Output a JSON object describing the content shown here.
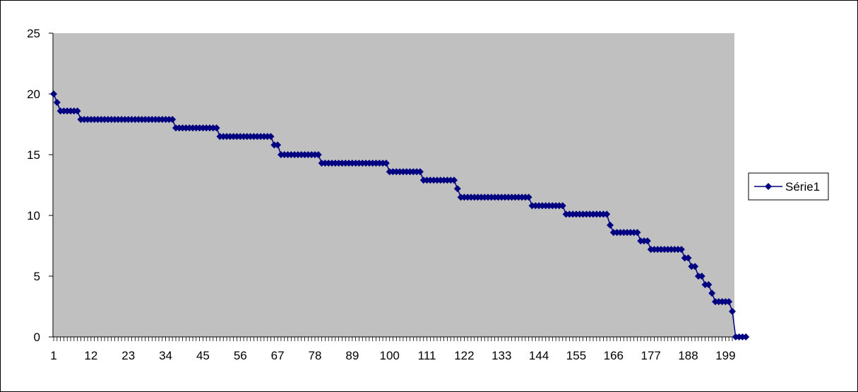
{
  "chart_data": {
    "type": "line",
    "title": "",
    "xlabel": "",
    "ylabel": "",
    "ylim": [
      0,
      25
    ],
    "y_ticks": [
      "0",
      "5",
      "10",
      "15",
      "20",
      "25"
    ],
    "x_range": [
      1,
      201
    ],
    "x_tick_labels": [
      "1",
      "12",
      "23",
      "34",
      "45",
      "56",
      "67",
      "78",
      "89",
      "100",
      "111",
      "122",
      "133",
      "144",
      "155",
      "166",
      "177",
      "188",
      "199"
    ],
    "x_tick_values": [
      1,
      12,
      23,
      34,
      45,
      56,
      67,
      78,
      89,
      100,
      111,
      122,
      133,
      144,
      155,
      166,
      177,
      188,
      199
    ],
    "plot_area_color": "#c0c0c0",
    "series_color": "#000080",
    "grid": false,
    "legend_position": "right",
    "series": [
      {
        "name": "Série1",
        "marker": "diamond",
        "runs": [
          [
            20.0,
            1
          ],
          [
            19.3,
            1
          ],
          [
            18.6,
            6
          ],
          [
            17.9,
            28
          ],
          [
            17.2,
            13
          ],
          [
            16.5,
            16
          ],
          [
            15.8,
            2
          ],
          [
            15.0,
            12
          ],
          [
            14.3,
            20
          ],
          [
            13.6,
            10
          ],
          [
            12.9,
            10
          ],
          [
            12.2,
            1
          ],
          [
            11.5,
            21
          ],
          [
            10.8,
            10
          ],
          [
            10.1,
            13
          ],
          [
            9.2,
            1
          ],
          [
            8.6,
            8
          ],
          [
            7.9,
            3
          ],
          [
            7.2,
            10
          ],
          [
            6.5,
            2
          ],
          [
            5.8,
            2
          ],
          [
            5.0,
            2
          ],
          [
            4.3,
            2
          ],
          [
            3.6,
            1
          ],
          [
            2.9,
            5
          ],
          [
            2.1,
            1
          ],
          [
            0.0,
            4
          ]
        ]
      }
    ]
  }
}
